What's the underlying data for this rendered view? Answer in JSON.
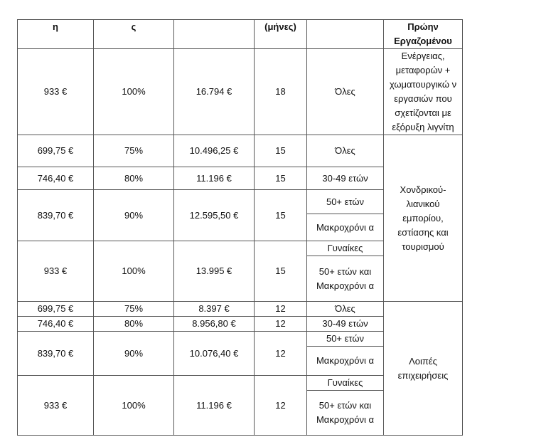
{
  "header": [
    "η",
    "ς",
    "",
    "(μήνες)",
    "",
    "Πρώην Εργαζομένου"
  ],
  "rows": {
    "r1": {
      "amount": "933 €",
      "pct": "100%",
      "total": "16.794 €",
      "months": "18",
      "group": "Όλες",
      "sector": "Ενέργειας, μεταφορών + χωματουργικώ ν εργασιών που σχετίζονται με εξόρυξη λιγνίτη"
    },
    "r2": {
      "amount": "699,75 €",
      "pct": "75%",
      "total": "10.496,25 €",
      "months": "15",
      "group": "Όλες"
    },
    "r3": {
      "amount": "746,40 €",
      "pct": "80%",
      "total": "11.196 €",
      "months": "15",
      "group": "30-49 ετών"
    },
    "r4": {
      "amount": "839,70 €",
      "pct": "90%",
      "total": "12.595,50 €",
      "months": "15",
      "group_a": "50+ ετών",
      "group_b": "Μακροχρόνι α"
    },
    "r5": {
      "amount": "933 €",
      "pct": "100%",
      "total": "13.995 €",
      "months": "15",
      "group_a": "Γυναίκες",
      "group_b": "50+ ετών και Μακροχρόνι α"
    },
    "sector2": "Χονδρικού- λιανικού εμπορίου, εστίασης και τουρισμού",
    "r6": {
      "amount": "699,75 €",
      "pct": "75%",
      "total": "8.397 €",
      "months": "12",
      "group": "Όλες"
    },
    "r7": {
      "amount": "746,40 €",
      "pct": "80%",
      "total": "8.956,80 €",
      "months": "12",
      "group": "30-49 ετών"
    },
    "r8": {
      "amount": "839,70 €",
      "pct": "90%",
      "total": "10.076,40 €",
      "months": "12",
      "group_a": "50+ ετών",
      "group_b": "Μακροχρόνι α"
    },
    "r9": {
      "amount": "933 €",
      "pct": "100%",
      "total": "11.196 €",
      "months": "12",
      "group_a": "Γυναίκες",
      "group_b": "50+ ετών και Μακροχρόνι α"
    },
    "sector3": "Λοιπές επιχειρήσεις"
  }
}
